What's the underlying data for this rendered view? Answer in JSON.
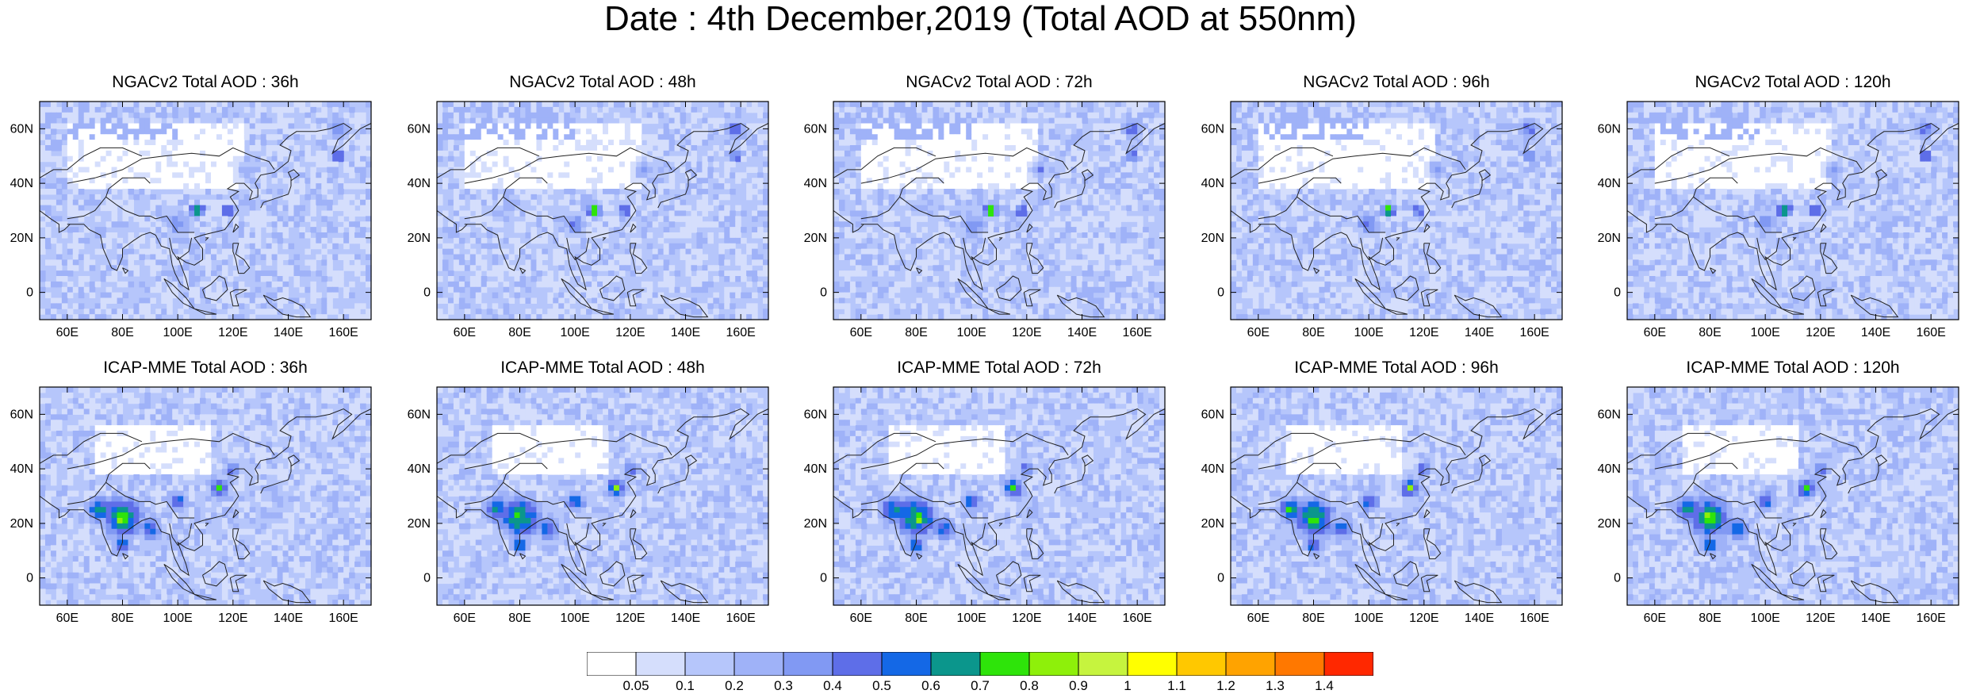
{
  "title": "Date : 4th December,2019 (Total AOD at 550nm)",
  "panels": [
    {
      "title": "NGACv2 Total AOD : 36h",
      "model": "NGACv2",
      "lead_hours": 36
    },
    {
      "title": "NGACv2 Total AOD : 48h",
      "model": "NGACv2",
      "lead_hours": 48
    },
    {
      "title": "NGACv2 Total AOD : 72h",
      "model": "NGACv2",
      "lead_hours": 72
    },
    {
      "title": "NGACv2 Total AOD : 96h",
      "model": "NGACv2",
      "lead_hours": 96
    },
    {
      "title": "NGACv2 Total AOD : 120h",
      "model": "NGACv2",
      "lead_hours": 120
    },
    {
      "title": "ICAP-MME Total AOD : 36h",
      "model": "ICAP-MME",
      "lead_hours": 36
    },
    {
      "title": "ICAP-MME Total AOD : 48h",
      "model": "ICAP-MME",
      "lead_hours": 48
    },
    {
      "title": "ICAP-MME Total AOD : 72h",
      "model": "ICAP-MME",
      "lead_hours": 72
    },
    {
      "title": "ICAP-MME Total AOD : 96h",
      "model": "ICAP-MME",
      "lead_hours": 96
    },
    {
      "title": "ICAP-MME Total AOD : 120h",
      "model": "ICAP-MME",
      "lead_hours": 120
    }
  ],
  "axes": {
    "lon_ticks": [
      "60E",
      "80E",
      "100E",
      "120E",
      "140E",
      "160E"
    ],
    "lat_ticks": [
      "60N",
      "40N",
      "20N",
      "0"
    ],
    "lon_values": [
      60,
      80,
      100,
      120,
      140,
      160
    ],
    "lat_values": [
      60,
      40,
      20,
      0
    ],
    "lon_range": [
      50,
      170
    ],
    "lat_range": [
      -10,
      70
    ]
  },
  "colorbar": {
    "labels": [
      "0.05",
      "0.1",
      "0.2",
      "0.3",
      "0.4",
      "0.5",
      "0.6",
      "0.7",
      "0.8",
      "0.9",
      "1",
      "1.1",
      "1.2",
      "1.3",
      "1.4"
    ],
    "colors": [
      "#ffffff",
      "#d5defc",
      "#b6c6fb",
      "#9fb2f8",
      "#8199f3",
      "#5e6ee8",
      "#1468e6",
      "#0b968c",
      "#2ee40a",
      "#8ef00a",
      "#c6f43e",
      "#ffff00",
      "#ffc800",
      "#ffa300",
      "#ff7800",
      "#ff2800"
    ]
  }
}
